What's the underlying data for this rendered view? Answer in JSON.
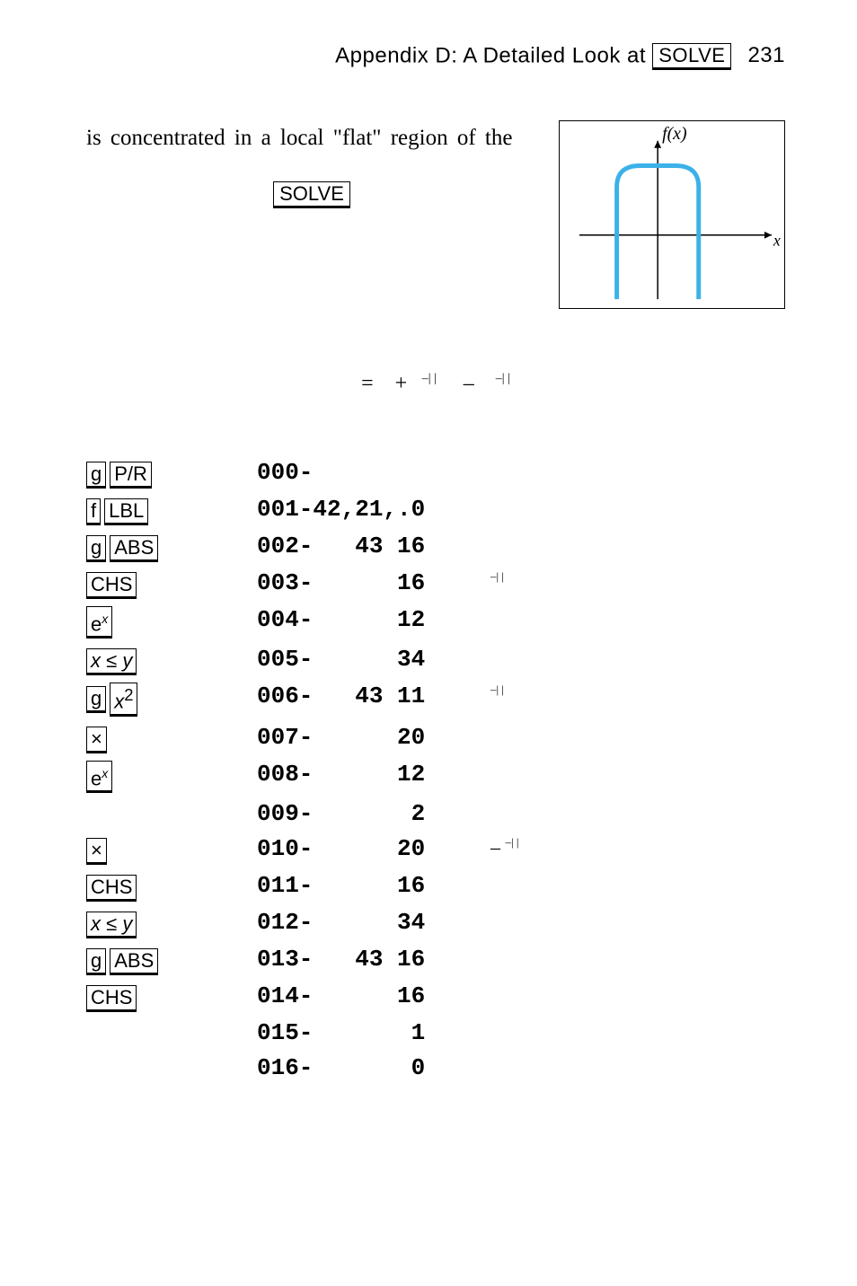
{
  "header": {
    "title_pre": "Appendix D: A Detailed Look at ",
    "solve_key": "SOLVE",
    "page_number": "231"
  },
  "intro": {
    "text": "is concentrated in a local \"flat\" region of the",
    "solve_key": "SOLVE"
  },
  "graph": {
    "fx_label": "f(x)",
    "x_label": "x",
    "curve_color": "#3bb1e8",
    "axis_color": "#000000",
    "bg": "#ffffff"
  },
  "formula": {
    "eq": "=",
    "plus": "+",
    "t1_exp": "–| |",
    "minus": "–",
    "t2_exp": "–| |"
  },
  "rows": [
    {
      "keys": [
        "g",
        "P/R"
      ],
      "code": "000-",
      "note": ""
    },
    {
      "keys": [
        "f",
        "LBL"
      ],
      "code": "001-42,21,.0",
      "note": ""
    },
    {
      "keys": [
        "g",
        "ABS"
      ],
      "code": "002-   43 16",
      "note": ""
    },
    {
      "keys": [
        "CHS"
      ],
      "code": "003-      16",
      "note": "–| |"
    },
    {
      "keys": [
        "eˣ"
      ],
      "code": "004-      12",
      "note": ""
    },
    {
      "keys": [
        "x≤y"
      ],
      "code": "005-      34",
      "note": ""
    },
    {
      "keys": [
        "g",
        "x²"
      ],
      "code": "006-   43 11",
      "note": "–| |"
    },
    {
      "keys": [
        "×"
      ],
      "code": "007-      20",
      "note": ""
    },
    {
      "keys": [
        "eˣ"
      ],
      "code": "008-      12",
      "note": ""
    },
    {
      "keys": [],
      "code": "009-       2",
      "note": ""
    },
    {
      "keys": [
        "×"
      ],
      "code": "010-      20",
      "note": "–   –| |"
    },
    {
      "keys": [
        "CHS"
      ],
      "code": "011-      16",
      "note": ""
    },
    {
      "keys": [
        "x≤y"
      ],
      "code": "012-      34",
      "note": ""
    },
    {
      "keys": [
        "g",
        "ABS"
      ],
      "code": "013-   43 16",
      "note": ""
    },
    {
      "keys": [
        "CHS"
      ],
      "code": "014-      16",
      "note": ""
    },
    {
      "keys": [],
      "code": "015-       1",
      "note": ""
    },
    {
      "keys": [],
      "code": "016-       0",
      "note": ""
    }
  ]
}
